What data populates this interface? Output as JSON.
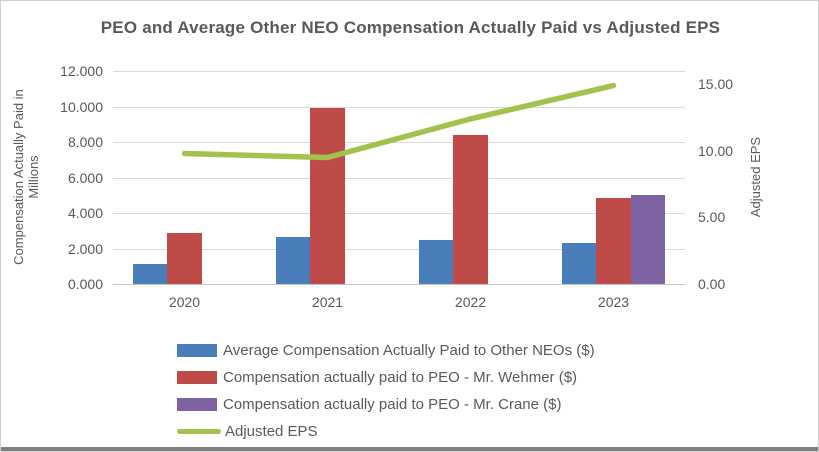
{
  "chart_data": {
    "type": "combo (grouped bar + line)",
    "title": "PEO and Average Other NEO Compensation Actually Paid vs Adjusted EPS",
    "categories": [
      "2020",
      "2021",
      "2022",
      "2023"
    ],
    "series": [
      {
        "name": "Average Compensation Actually Paid to Other NEOs ($)",
        "kind": "bar",
        "axis": "left",
        "color": "#4a7ebb",
        "values": [
          1.15,
          2.65,
          2.5,
          2.3
        ]
      },
      {
        "name": "Compensation actually paid to PEO - Mr. Wehmer ($)",
        "kind": "bar",
        "axis": "left",
        "color": "#be4b48",
        "values": [
          2.9,
          9.9,
          8.4,
          4.85
        ]
      },
      {
        "name": "Compensation actually paid to PEO - Mr. Crane ($)",
        "kind": "bar",
        "axis": "left",
        "color": "#7e62a1",
        "values": [
          null,
          null,
          null,
          5.0
        ]
      },
      {
        "name": "Adjusted EPS",
        "kind": "line",
        "axis": "right",
        "color": "#a2c14d",
        "values": [
          9.8,
          9.5,
          12.4,
          14.9
        ]
      }
    ],
    "left_axis": {
      "label": "Compensation Actually Paid in Millions",
      "min": 0,
      "max": 12,
      "step": 2,
      "tick_labels": [
        "12.000",
        "10.000",
        "8.000",
        "6.000",
        "4.000",
        "2.000",
        "0.000"
      ]
    },
    "right_axis": {
      "label": "Adjusted EPS",
      "min": 0,
      "max": 16,
      "step": 5,
      "tick_labels": [
        "15.00",
        "10.00",
        "5.00",
        "0.00"
      ],
      "tick_values": [
        15,
        10,
        5,
        0
      ]
    },
    "grid": true,
    "legend_position": "bottom-left"
  },
  "colors": {
    "text": "#595959",
    "gridline": "#d9d9d9",
    "window_bottom_edge": "#7f7f7f"
  }
}
